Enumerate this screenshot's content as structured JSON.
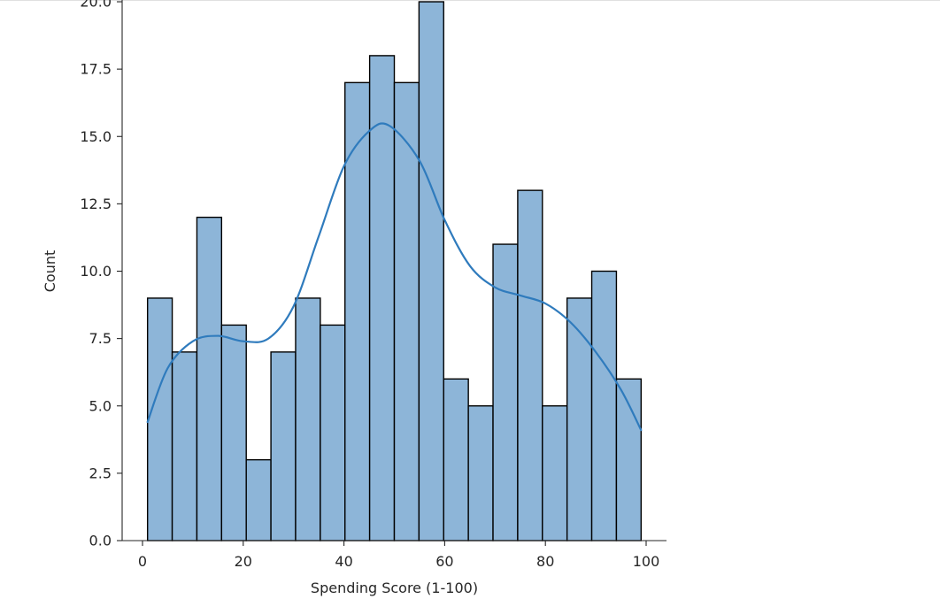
{
  "chart_data": {
    "type": "bar",
    "subtype": "histogram-with-kde",
    "bins": [
      {
        "x0": 1.0,
        "x1": 5.9,
        "count": 9
      },
      {
        "x0": 5.9,
        "x1": 10.8,
        "count": 7
      },
      {
        "x0": 10.8,
        "x1": 15.7,
        "count": 12
      },
      {
        "x0": 15.7,
        "x1": 20.6,
        "count": 8
      },
      {
        "x0": 20.6,
        "x1": 25.5,
        "count": 3
      },
      {
        "x0": 25.5,
        "x1": 30.4,
        "count": 7
      },
      {
        "x0": 30.4,
        "x1": 35.3,
        "count": 9
      },
      {
        "x0": 35.3,
        "x1": 40.2,
        "count": 8
      },
      {
        "x0": 40.2,
        "x1": 45.1,
        "count": 17
      },
      {
        "x0": 45.1,
        "x1": 50.0,
        "count": 18
      },
      {
        "x0": 50.0,
        "x1": 54.9,
        "count": 17
      },
      {
        "x0": 54.9,
        "x1": 59.8,
        "count": 20
      },
      {
        "x0": 59.8,
        "x1": 64.7,
        "count": 6
      },
      {
        "x0": 64.7,
        "x1": 69.6,
        "count": 5
      },
      {
        "x0": 69.6,
        "x1": 74.5,
        "count": 11
      },
      {
        "x0": 74.5,
        "x1": 79.4,
        "count": 13
      },
      {
        "x0": 79.4,
        "x1": 84.3,
        "count": 5
      },
      {
        "x0": 84.3,
        "x1": 89.2,
        "count": 9
      },
      {
        "x0": 89.2,
        "x1": 94.1,
        "count": 10
      },
      {
        "x0": 94.1,
        "x1": 99.0,
        "count": 6
      }
    ],
    "kde": {
      "x": [
        1,
        5,
        10,
        15,
        20,
        25,
        30,
        35,
        40,
        45,
        49,
        55,
        60,
        65,
        70,
        75,
        80,
        85,
        90,
        95,
        99
      ],
      "y": [
        4.4,
        6.4,
        7.4,
        7.6,
        7.4,
        7.5,
        8.7,
        11.3,
        13.9,
        15.2,
        15.4,
        14.1,
        11.9,
        10.2,
        9.4,
        9.1,
        8.8,
        8.1,
        7.0,
        5.6,
        4.1
      ]
    },
    "xlabel": "Spending Score (1-100)",
    "ylabel": "Count",
    "xlim": [
      -4.0,
      104.0
    ],
    "ylim": [
      0,
      20
    ],
    "x_ticks": [
      0,
      20,
      40,
      60,
      80,
      100
    ],
    "x_tick_labels": [
      "0",
      "20",
      "40",
      "60",
      "80",
      "100"
    ],
    "y_ticks": [
      0,
      2.5,
      5,
      7.5,
      10,
      12.5,
      15,
      17.5,
      20
    ],
    "y_tick_labels": [
      "0.0",
      "2.5",
      "5.0",
      "7.5",
      "10.0",
      "12.5",
      "15.0",
      "17.5",
      "20.0"
    ],
    "colors": {
      "bar_fill": "#8db5d8",
      "bar_edge": "#000000",
      "kde_line": "#2f7bbd",
      "axis": "#262626"
    },
    "grid": false,
    "spines": [
      "left",
      "bottom"
    ]
  }
}
